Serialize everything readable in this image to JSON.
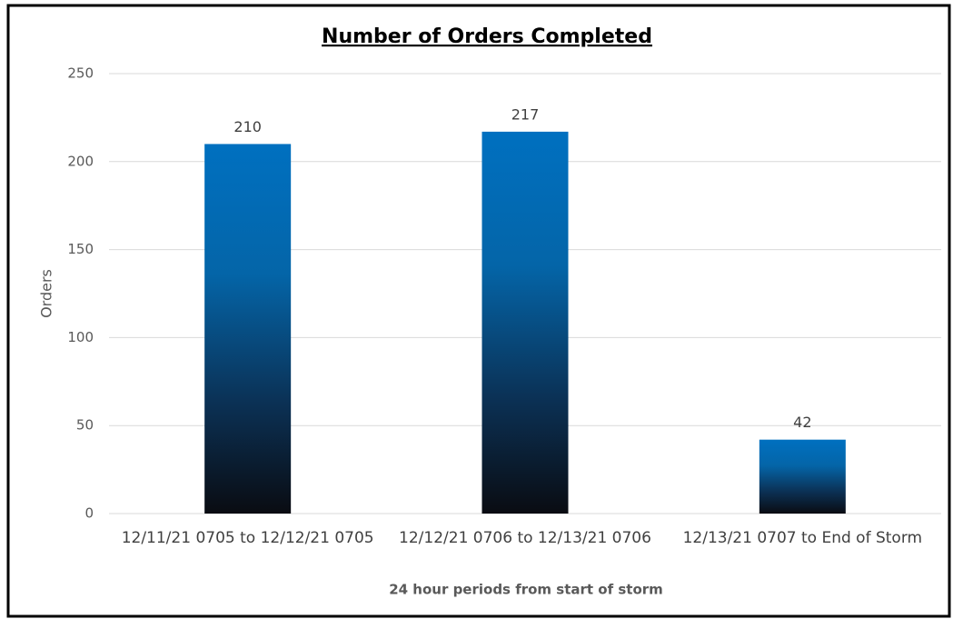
{
  "chart_data": {
    "type": "bar",
    "title": "Number of Orders Completed",
    "x_label": "24 hour periods from start of storm",
    "y_label": "Orders",
    "categories": [
      "12/11/21 0705 to 12/12/21 0705",
      "12/12/21 0706 to 12/13/21 0706",
      "12/13/21 0707 to End of Storm"
    ],
    "values": [
      210,
      217,
      42
    ],
    "color": "#0070c0",
    "ylim": [
      0,
      250
    ],
    "yticks": [
      0,
      50,
      100,
      150,
      200,
      250
    ],
    "grid": true
  }
}
